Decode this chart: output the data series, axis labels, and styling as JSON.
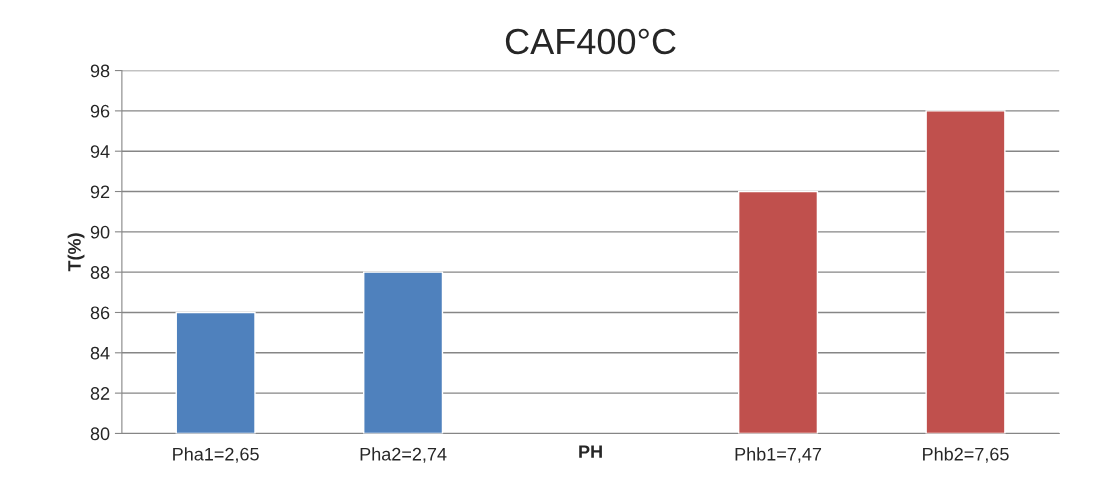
{
  "chart_data": {
    "type": "bar",
    "title": "CAF400°C",
    "xlabel": "PH",
    "ylabel": "T(%)",
    "categories": [
      "Pha1=2,65",
      "Pha2=2,74",
      null,
      "Phb1=7,47",
      "Phb2=7,65"
    ],
    "values": [
      86,
      88,
      null,
      92,
      96
    ],
    "colors": [
      "#4f81bd",
      "#4f81bd",
      null,
      "#c0504d",
      "#c0504d"
    ],
    "ylim": [
      80,
      98
    ],
    "yticks": [
      80,
      82,
      84,
      86,
      88,
      90,
      92,
      94,
      96,
      98
    ],
    "grid": "y",
    "legend": false
  }
}
